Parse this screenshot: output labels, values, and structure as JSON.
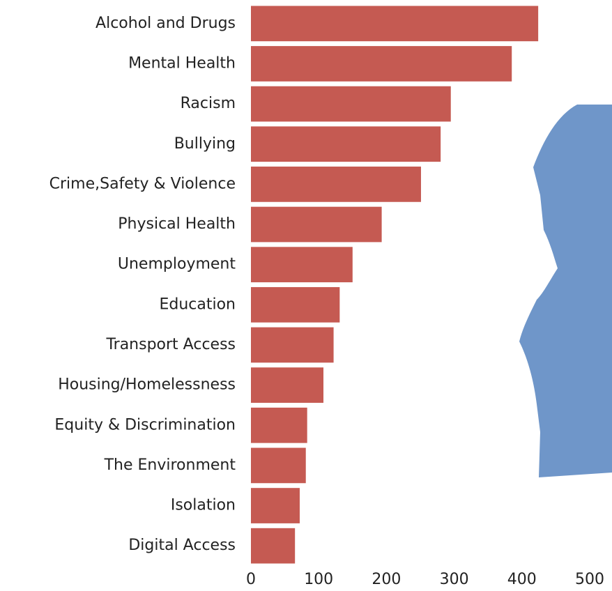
{
  "chart_data": {
    "type": "bar",
    "orientation": "horizontal",
    "categories": [
      "Alcohol and Drugs",
      "Mental Health",
      "Racism",
      "Bullying",
      "Crime,Safety & Violence",
      "Physical Health",
      "Unemployment",
      "Education",
      "Transport Access",
      "Housing/Homelessness",
      "Equity & Discrimination",
      "The Environment",
      "Isolation",
      "Digital Access"
    ],
    "values": [
      424,
      385,
      295,
      280,
      251,
      193,
      150,
      131,
      122,
      107,
      83,
      81,
      72,
      65
    ],
    "color": "#c55a52",
    "xlim": [
      0,
      500
    ],
    "xticks": [
      0,
      100,
      200,
      300,
      400,
      500
    ],
    "grid": false
  }
}
